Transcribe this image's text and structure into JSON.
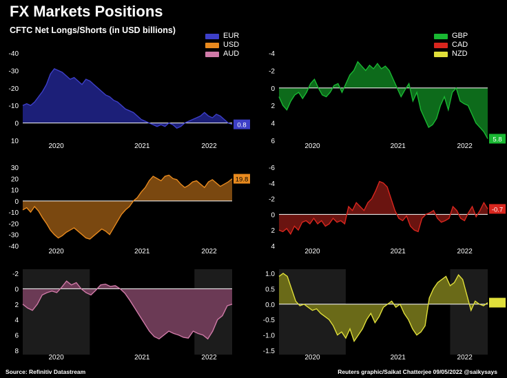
{
  "header": {
    "title": "FX Markets Positions",
    "subtitle": "CFTC Net Longs/Shorts (in USD billions)"
  },
  "footer": {
    "source": "Source: Refinitiv Datastream",
    "credit": "Reuters graphic/Saikat Chatterjee 09/05/2022 @saikysays"
  },
  "legends": {
    "left": [
      {
        "name": "EUR",
        "color": "#3d3fc8"
      },
      {
        "name": "USD",
        "color": "#e88a1e"
      },
      {
        "name": "AUD",
        "color": "#d07aa8"
      }
    ],
    "right": [
      {
        "name": "GBP",
        "color": "#19b832"
      },
      {
        "name": "CAD",
        "color": "#d9261e"
      },
      {
        "name": "NZD",
        "color": "#e0df3a"
      }
    ]
  },
  "chart_data": [
    {
      "type": "area",
      "name": "EUR",
      "color": "#3d3fc8",
      "fill": "#1c1f78",
      "ylim": [
        10,
        -40
      ],
      "inverted": true,
      "yticks": [
        "-40",
        "-30",
        "-20",
        "-10",
        "0",
        "10"
      ],
      "ytick_values": [
        -40,
        -30,
        -20,
        -10,
        0,
        10
      ],
      "xticks": [
        "2020",
        "2021",
        "2022"
      ],
      "xtick_pos": [
        0.16,
        0.57,
        0.89
      ],
      "last_label": "0.8",
      "last_value": 0.8,
      "values": [
        -10,
        -11,
        -10,
        -12,
        -15,
        -18,
        -22,
        -28,
        -31,
        -30,
        -29,
        -27,
        -25,
        -26,
        -24,
        -22,
        -25,
        -24,
        -22,
        -20,
        -18,
        -16,
        -15,
        -13,
        -12,
        -10,
        -8,
        -7,
        -6,
        -4,
        -2,
        -1,
        0,
        1,
        2,
        1,
        2,
        0,
        1,
        3,
        2,
        0,
        -1,
        -2,
        -3,
        -4,
        -6,
        -4,
        -3,
        -5,
        -4,
        -2,
        0,
        0.8
      ]
    },
    {
      "type": "area",
      "name": "USD",
      "color": "#e88a1e",
      "fill": "#7a4810",
      "ylim": [
        -40,
        30
      ],
      "inverted": false,
      "yticks": [
        "30",
        "20",
        "10",
        "0",
        "-10",
        "-20",
        "-30",
        "-40"
      ],
      "ytick_values": [
        30,
        20,
        10,
        0,
        -10,
        -20,
        -30,
        -40
      ],
      "xticks": [
        "2020",
        "2021",
        "2022"
      ],
      "xtick_pos": [
        0.16,
        0.57,
        0.89
      ],
      "last_label": "19.8",
      "last_value": 19.8,
      "values": [
        -8,
        -6,
        -10,
        -5,
        -9,
        -15,
        -20,
        -26,
        -30,
        -33,
        -31,
        -28,
        -26,
        -24,
        -27,
        -30,
        -33,
        -34,
        -31,
        -28,
        -25,
        -27,
        -30,
        -24,
        -18,
        -12,
        -8,
        -5,
        0,
        3,
        8,
        12,
        18,
        22,
        20,
        18,
        22,
        23,
        20,
        19,
        15,
        12,
        14,
        17,
        18,
        15,
        12,
        17,
        19,
        16,
        13,
        15,
        17,
        19.8
      ]
    },
    {
      "type": "area",
      "name": "AUD",
      "color": "#d07aa8",
      "fill": "#6b3a55",
      "ylim": [
        8,
        -2
      ],
      "inverted": true,
      "yticks": [
        "-2",
        "0",
        "2",
        "4",
        "6",
        "8"
      ],
      "ytick_values": [
        -2,
        0,
        2,
        4,
        6,
        8
      ],
      "xticks": [
        "2020",
        "2021",
        "2022"
      ],
      "xtick_pos": [
        0.16,
        0.57,
        0.89
      ],
      "shaded": [
        [
          0,
          0.32
        ],
        [
          0.82,
          1
        ]
      ],
      "values": [
        2,
        2.5,
        2.8,
        2,
        0.8,
        0.5,
        0.3,
        0.5,
        -0.2,
        -1,
        -0.5,
        -0.8,
        0,
        0.5,
        0.8,
        0.2,
        -0.5,
        -0.6,
        -0.3,
        -0.4,
        0,
        0.6,
        1.5,
        2.5,
        3.5,
        4.5,
        5.5,
        6.2,
        6.5,
        6,
        5.5,
        5.8,
        6,
        6.3,
        6.4,
        5.5,
        5.8,
        6,
        6.5,
        5.5,
        4,
        3.5,
        2.2,
        2
      ]
    },
    {
      "type": "area",
      "name": "GBP",
      "color": "#19b832",
      "fill": "#0d6b1b",
      "ylim": [
        6,
        -4
      ],
      "inverted": true,
      "yticks": [
        "-4",
        "-2",
        "0",
        "2",
        "4",
        "6"
      ],
      "ytick_values": [
        -4,
        -2,
        0,
        2,
        4,
        6
      ],
      "xticks": [
        "2020",
        "2021",
        "2022"
      ],
      "xtick_pos": [
        0.16,
        0.57,
        0.89
      ],
      "last_label": "5.8",
      "last_value": 5.8,
      "values": [
        1,
        2,
        2.5,
        1.5,
        0.8,
        0.5,
        1.2,
        0.5,
        -0.5,
        -1,
        0,
        0.8,
        1,
        0.5,
        -0.3,
        -0.5,
        0.5,
        -0.5,
        -1.5,
        -2,
        -3,
        -2.5,
        -2,
        -2.6,
        -2.2,
        -2.8,
        -2.2,
        -2.5,
        -2,
        -1,
        0,
        1,
        0.2,
        -0.5,
        1.5,
        0.5,
        2.5,
        3.5,
        4.5,
        4.2,
        3.5,
        2,
        1,
        2.5,
        0.5,
        0,
        1.5,
        1.8,
        2,
        3,
        4,
        4.5,
        5,
        5.8
      ]
    },
    {
      "type": "area",
      "name": "CAD",
      "color": "#d9261e",
      "fill": "#6a1410",
      "ylim": [
        4,
        -6
      ],
      "inverted": true,
      "yticks": [
        "-6",
        "-4",
        "-2",
        "0",
        "2",
        "4"
      ],
      "ytick_values": [
        -6,
        -4,
        -2,
        0,
        2,
        4
      ],
      "xticks": [
        "2020",
        "2021",
        "2022"
      ],
      "xtick_pos": [
        0.16,
        0.57,
        0.89
      ],
      "last_label": "-0.7",
      "last_value": -0.7,
      "values": [
        2,
        2.2,
        1.8,
        2.5,
        1.5,
        2,
        1,
        0.8,
        1.2,
        0.5,
        1.2,
        0.8,
        1.5,
        1.2,
        0.5,
        1,
        0.8,
        1.2,
        -1,
        -0.5,
        -1.5,
        -1,
        -0.5,
        -1.5,
        -2,
        -3,
        -4.2,
        -4,
        -3.5,
        -2,
        -0.5,
        0.5,
        0.8,
        0.2,
        1.5,
        2,
        2.2,
        0.5,
        0,
        -0.2,
        -0.5,
        0.5,
        1,
        0.8,
        0.5,
        -1,
        -0.5,
        0.5,
        0.8,
        -0.2,
        -1,
        0.3,
        -0.5,
        -1.5,
        -0.7
      ]
    },
    {
      "type": "area",
      "name": "NZD",
      "color": "#e0df3a",
      "fill": "#6a6a18",
      "ylim": [
        -1.5,
        1.0
      ],
      "inverted": false,
      "yticks": [
        "1.0",
        "0.5",
        "0.0",
        "-0.5",
        "-1.0",
        "-1.5"
      ],
      "ytick_values": [
        1.0,
        0.5,
        0.0,
        -0.5,
        -1.0,
        -1.5
      ],
      "xticks": [
        "2020",
        "2021",
        "2022"
      ],
      "xtick_pos": [
        0.16,
        0.57,
        0.89
      ],
      "shaded": [
        [
          0,
          0.32
        ],
        [
          0.82,
          1
        ]
      ],
      "last_value": 0.05,
      "values": [
        0.9,
        1.0,
        0.9,
        0.5,
        0.1,
        -0.05,
        0.0,
        -0.1,
        -0.2,
        -0.15,
        -0.3,
        -0.4,
        -0.5,
        -0.7,
        -1.0,
        -0.9,
        -1.1,
        -0.8,
        -1.2,
        -1.0,
        -0.8,
        -0.5,
        -0.3,
        -0.6,
        -0.4,
        -0.1,
        0.0,
        0.1,
        -0.1,
        0.0,
        -0.3,
        -0.5,
        -0.8,
        -1.0,
        -0.9,
        -0.7,
        0.2,
        0.5,
        0.7,
        0.8,
        0.9,
        0.6,
        0.7,
        0.95,
        0.8,
        0.3,
        -0.2,
        0.1,
        0.0,
        -0.05,
        0.05
      ]
    }
  ]
}
